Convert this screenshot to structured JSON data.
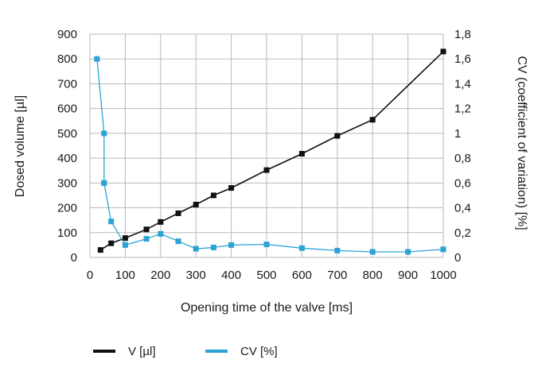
{
  "chart_data": {
    "type": "line",
    "title": "",
    "xlabel": "Opening time of the valve [ms]",
    "ylabel_left": "Dosed volume [µl]",
    "ylabel_right": "CV (coefficient of variation) [%]",
    "xlim": [
      0,
      1000
    ],
    "ylim_left": [
      0,
      900
    ],
    "ylim_right": [
      0,
      1.8
    ],
    "x_ticks": [
      0,
      100,
      200,
      300,
      400,
      500,
      600,
      700,
      800,
      900,
      1000
    ],
    "y_left_ticks": [
      0,
      100,
      200,
      300,
      400,
      500,
      600,
      700,
      800,
      900
    ],
    "y_right_ticks": [
      "0",
      "0,2",
      "0,4",
      "0,6",
      "0,8",
      "1",
      "1,2",
      "1,4",
      "1,6",
      "1,8"
    ],
    "grid": true,
    "legend_position": "bottom-left",
    "series": [
      {
        "name": "V  [µl]",
        "axis": "left",
        "color": "#111111",
        "x": [
          30,
          60,
          100,
          160,
          200,
          250,
          300,
          350,
          400,
          500,
          600,
          700,
          800,
          1000
        ],
        "y": [
          30,
          57,
          78,
          113,
          143,
          178,
          213,
          250,
          280,
          352,
          418,
          490,
          555,
          830
        ]
      },
      {
        "name": "CV [%]",
        "axis": "right",
        "color": "#2ba3d6",
        "x": [
          20,
          40,
          40,
          40,
          60,
          100,
          160,
          200,
          250,
          300,
          350,
          400,
          500,
          600,
          700,
          800,
          900,
          1000
        ],
        "y": [
          1.6,
          1.0,
          0.6,
          0.6,
          0.29,
          0.1,
          0.15,
          0.19,
          0.13,
          0.07,
          0.08,
          0.1,
          0.105,
          0.075,
          0.055,
          0.045,
          0.045,
          0.065
        ]
      }
    ]
  }
}
